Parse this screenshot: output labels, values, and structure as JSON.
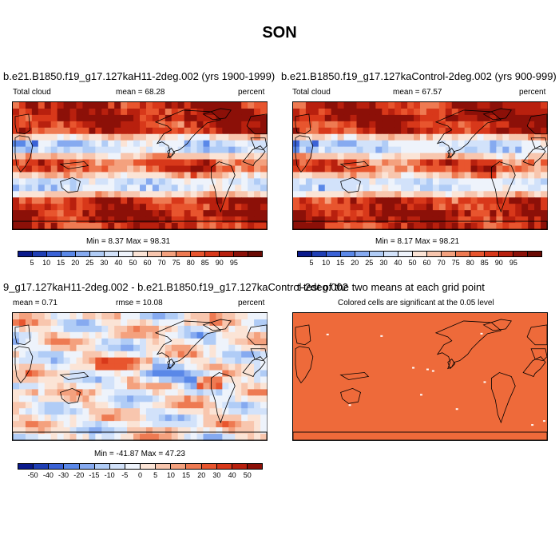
{
  "figure": {
    "title": "SON"
  },
  "colors": {
    "abs_scale": [
      "#0a1a8c",
      "#1f3fb5",
      "#3a62d6",
      "#5a88e8",
      "#86aaf0",
      "#b0ccf6",
      "#d2e2fa",
      "#eef3fb",
      "#fbe4d6",
      "#f8c6ae",
      "#f4a17e",
      "#ee7a52",
      "#e8552e",
      "#d8381a",
      "#b8200e",
      "#8c1008",
      "#6a0a04"
    ],
    "diff_scale": [
      "#0a1a8c",
      "#1f3fb5",
      "#3a62d6",
      "#5a88e8",
      "#86aaf0",
      "#b0ccf6",
      "#d2e2fa",
      "#eef3fb",
      "#fbe4d6",
      "#f8c6ae",
      "#f4a17e",
      "#ee7a52",
      "#e8552e",
      "#d8381a",
      "#b8200e",
      "#8c1008"
    ],
    "significance_fill": "#ee6a3a",
    "land_line": "#000000"
  },
  "panels": {
    "top_left": {
      "title": "b.e21.B1850.f19_g17.127kaH11-2deg.002 (yrs 1900-1999)",
      "variable": "Total cloud",
      "mean_text": "mean =  68.28",
      "units": "percent",
      "minmax": "Min =   8.37 Max =  98.31"
    },
    "top_right": {
      "title": "b.e21.B1850.f19_g17.127kaControl-2deg.002 (yrs 900-999)",
      "variable": "Total cloud",
      "mean_text": "mean =  67.57",
      "units": "percent",
      "minmax": "Min =   8.17 Max =  98.21"
    },
    "bottom_left": {
      "title": "9_g17.127kaH11-2deg.002 - b.e21.B1850.f19_g17.127kaControl-2deg.002",
      "mean_text": "mean =   0.71",
      "rmse_text": "rmse =  10.08",
      "units": "percent",
      "minmax": "Min = -41.87 Max =  47.23"
    },
    "bottom_right": {
      "title": "t-test of the two means at each grid point",
      "subtitle": "Colored cells are significant at the 0.05 level"
    }
  },
  "colorbars": {
    "abs_labels": [
      "5",
      "10",
      "15",
      "20",
      "25",
      "30",
      "40",
      "50",
      "60",
      "70",
      "75",
      "80",
      "85",
      "90",
      "95"
    ],
    "diff_labels": [
      "-50",
      "-40",
      "-30",
      "-20",
      "-15",
      "-10",
      "-5",
      "0",
      "5",
      "10",
      "15",
      "20",
      "30",
      "40",
      "50"
    ]
  }
}
